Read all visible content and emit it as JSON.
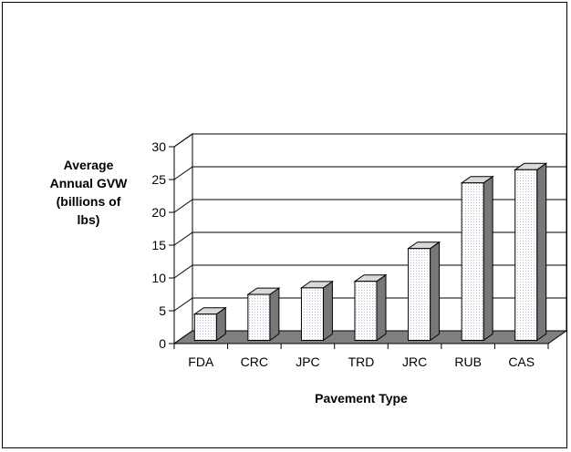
{
  "chart_data": {
    "type": "bar",
    "style": "3d-column",
    "title": "",
    "xlabel": "Pavement Type",
    "ylabel_lines": [
      "Average",
      "Annual GVW",
      "(billions of",
      "lbs)"
    ],
    "categories": [
      "FDA",
      "CRC",
      "JPC",
      "TRD",
      "JRC",
      "RUB",
      "CAS"
    ],
    "values": [
      4,
      7,
      8,
      9,
      14,
      24,
      26
    ],
    "ylim": [
      0,
      30
    ],
    "yticks": [
      0,
      5,
      10,
      15,
      20,
      25,
      30
    ],
    "grid": true,
    "legend": "none",
    "colors": {
      "bar_front": "#f2f2ff",
      "bar_side": "#777777",
      "bar_top": "#d9d9d9",
      "floor": "#808080",
      "gridline": "#000000"
    }
  }
}
